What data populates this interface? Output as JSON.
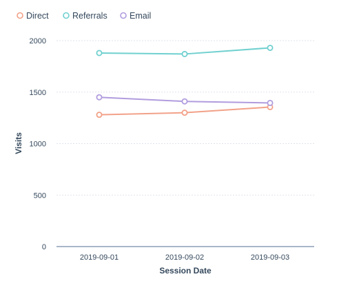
{
  "chart_data": {
    "type": "line",
    "title": "",
    "xlabel": "Session Date",
    "ylabel": "Visits",
    "categories": [
      "2019-09-01",
      "2019-09-02",
      "2019-09-03"
    ],
    "ylim": [
      0,
      2000
    ],
    "yticks": [
      "0",
      "500",
      "1000",
      "1500",
      "2000"
    ],
    "grid": true,
    "legend_position": "top-left",
    "series": [
      {
        "name": "Direct",
        "color": "#f2a188",
        "values": [
          1280,
          1300,
          1355
        ]
      },
      {
        "name": "Referrals",
        "color": "#6fd0cf",
        "values": [
          1880,
          1870,
          1930
        ]
      },
      {
        "name": "Email",
        "color": "#b09cde",
        "values": [
          1450,
          1410,
          1395
        ]
      }
    ]
  }
}
